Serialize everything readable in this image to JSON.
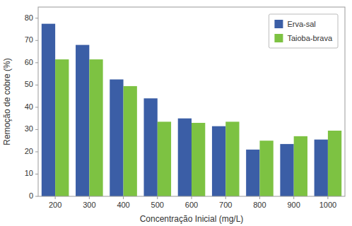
{
  "chart_data": {
    "type": "bar",
    "xlabel": "Concentração Inicial (mg/L)",
    "ylabel": "Remoção de cobre (%)",
    "categories": [
      200,
      300,
      400,
      500,
      600,
      700,
      800,
      900,
      1000
    ],
    "series": [
      {
        "name": "Erva-sal",
        "color": "#3B5EA6",
        "values": [
          77.5,
          68.0,
          52.5,
          44.0,
          35.0,
          31.5,
          21.0,
          23.5,
          25.5
        ]
      },
      {
        "name": "Taioba-brava",
        "color": "#7DC242",
        "values": [
          61.5,
          61.5,
          49.5,
          33.5,
          33.0,
          33.5,
          25.0,
          27.0,
          29.5
        ]
      }
    ],
    "ylim": [
      0,
      85
    ],
    "yticks": [
      0,
      10,
      20,
      30,
      40,
      50,
      60,
      70,
      80
    ],
    "grid": false,
    "legend": "upper right"
  }
}
